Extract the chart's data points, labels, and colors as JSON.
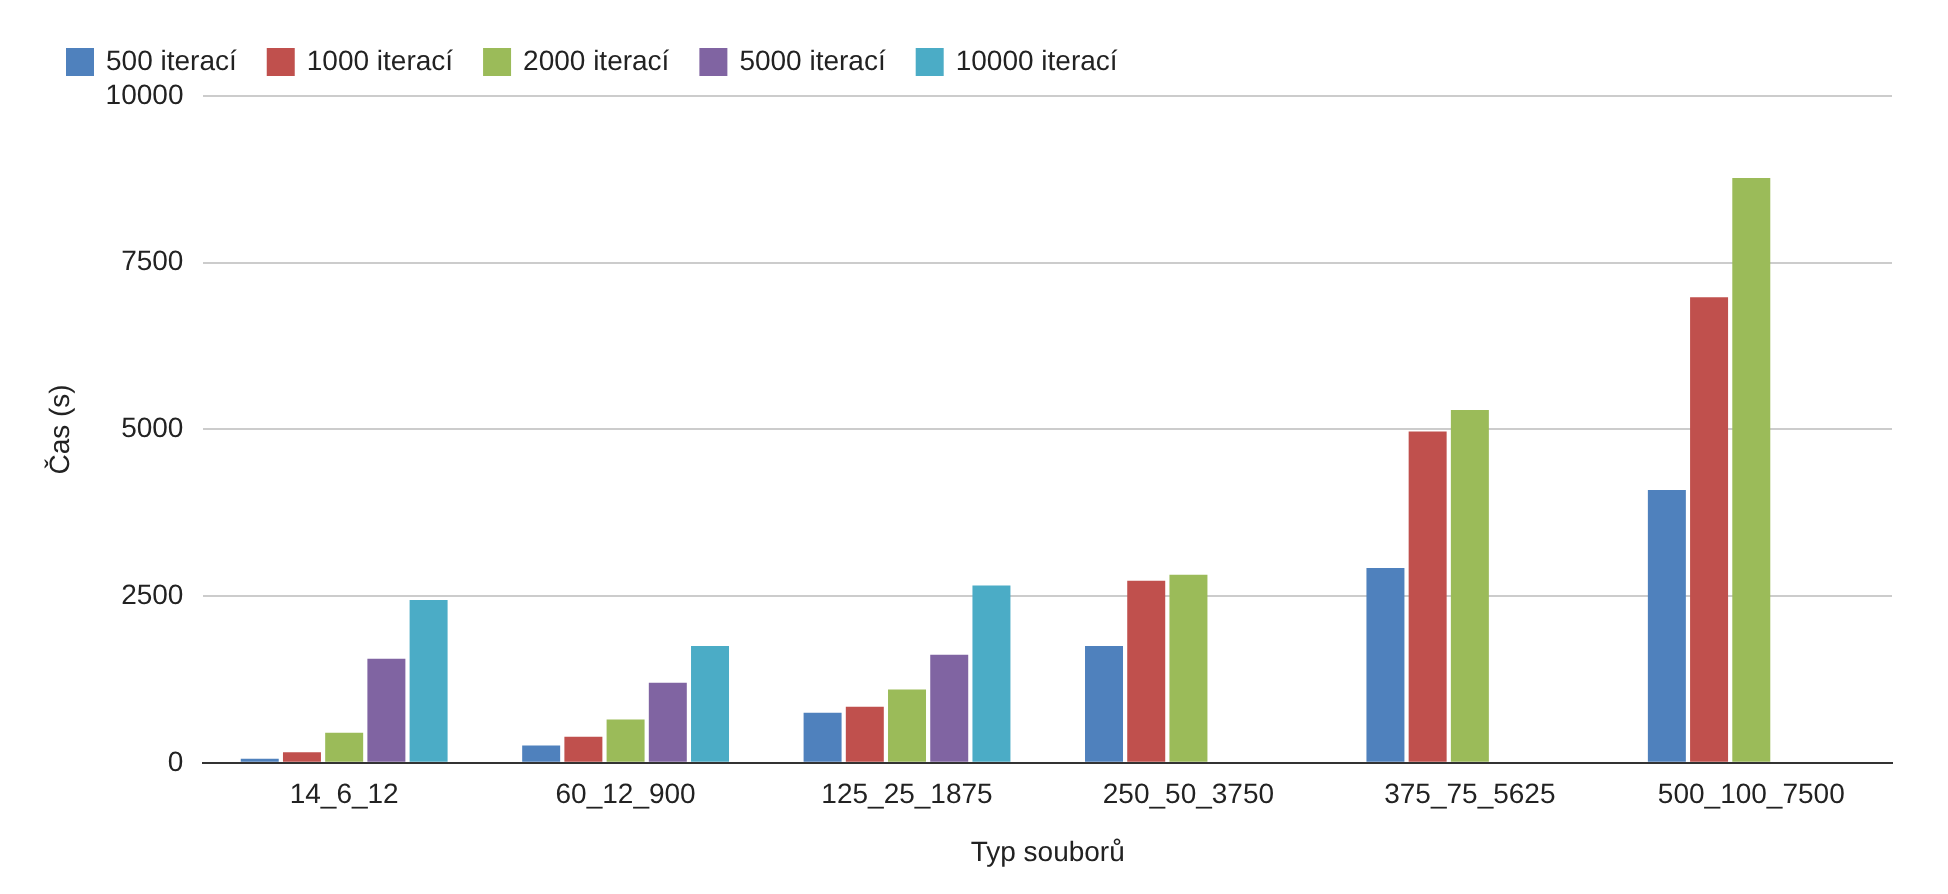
{
  "chart_data": {
    "type": "bar",
    "xlabel": "Typ souborů",
    "ylabel": "Čas (s)",
    "categories": [
      "14_6_12",
      "60_12_900",
      "125_25_1875",
      "250_50_3750",
      "375_75_5625",
      "500_100_7500"
    ],
    "series": [
      {
        "name": "500 iterací",
        "color": "#4f81bd",
        "values": [
          60,
          260,
          750,
          1750,
          2920,
          4090
        ]
      },
      {
        "name": "1000 iterací",
        "color": "#c0504d",
        "values": [
          160,
          390,
          840,
          2730,
          4970,
          6980
        ]
      },
      {
        "name": "2000 iterací",
        "color": "#9bbb59",
        "values": [
          450,
          650,
          1100,
          2820,
          5290,
          8770
        ]
      },
      {
        "name": "5000 iterací",
        "color": "#8064a2",
        "values": [
          1560,
          1200,
          1620,
          null,
          null,
          null
        ]
      },
      {
        "name": "10000 iterací",
        "color": "#4bacc6",
        "values": [
          2440,
          1750,
          2660,
          null,
          null,
          null
        ]
      }
    ],
    "ylim": [
      0,
      10000
    ],
    "yticks": [
      0,
      2500,
      5000,
      7500,
      10000
    ],
    "grid": "y",
    "legend": "top left"
  }
}
